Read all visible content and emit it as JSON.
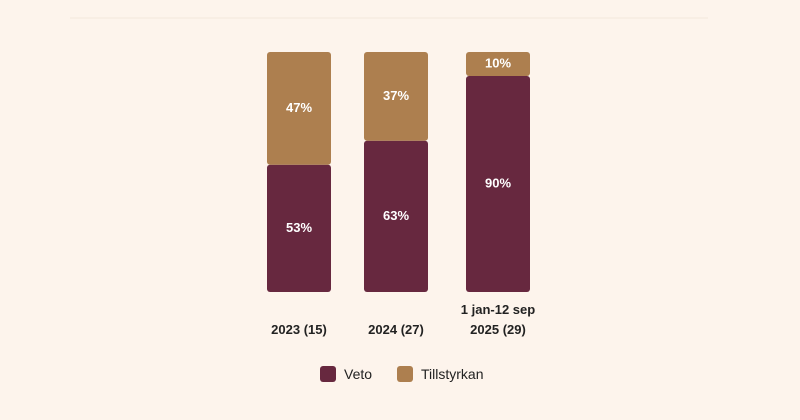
{
  "chart_data": {
    "type": "stacked-bar",
    "categories": [
      "2023 (15)",
      "2024 (27)",
      "1 jan-12 sep 2025 (29)"
    ],
    "series": [
      {
        "name": "Veto",
        "color": "#67283f",
        "values": [
          53,
          63,
          90
        ],
        "value_labels": [
          "53%",
          "63%",
          "90%"
        ]
      },
      {
        "name": "Tillstyrkan",
        "color": "#ad7f4f",
        "values": [
          47,
          37,
          10
        ],
        "value_labels": [
          "47%",
          "37%",
          "10%"
        ]
      }
    ],
    "ylim": [
      0,
      100
    ]
  }
}
